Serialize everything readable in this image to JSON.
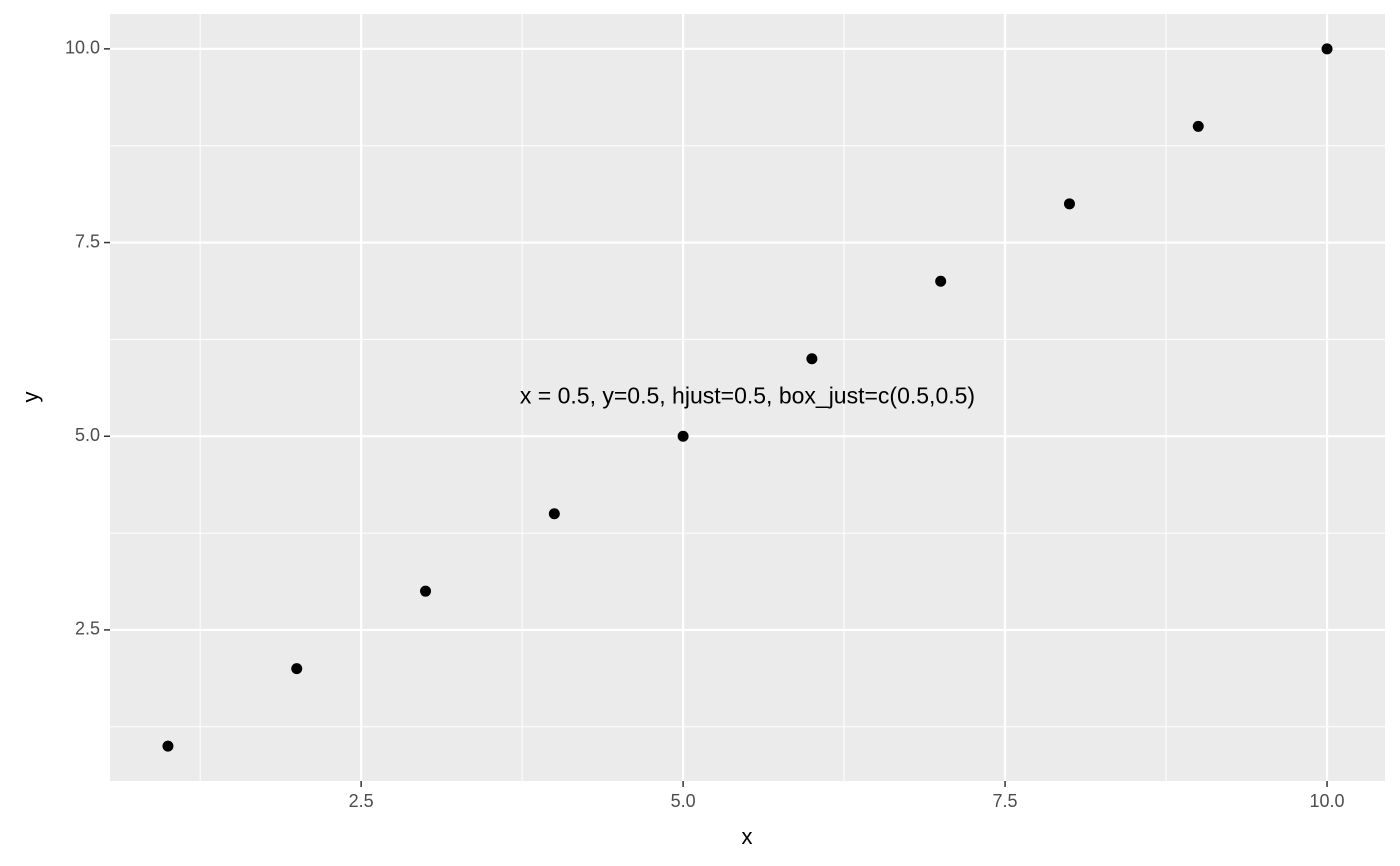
{
  "chart_data": {
    "type": "scatter",
    "x_label": "x",
    "y_label": "y",
    "annotation": "x = 0.5, y=0.5, hjust=0.5, box_just=c(0.5,0.5)",
    "x": [
      1,
      2,
      3,
      4,
      5,
      6,
      7,
      8,
      9,
      10
    ],
    "values": [
      1,
      2,
      3,
      4,
      5,
      6,
      7,
      8,
      9,
      10
    ],
    "color": "#000000",
    "xlim": [
      0.55,
      10.45
    ],
    "ylim": [
      0.55,
      10.45
    ],
    "xticks": [
      2.5,
      {
        "value": 5,
        "label": "5.0"
      },
      7.5,
      {
        "value": 10,
        "label": "10.0"
      }
    ],
    "yticks": [
      2.5,
      {
        "value": 5,
        "label": "5.0"
      },
      7.5,
      {
        "value": 10,
        "label": "10.0"
      }
    ],
    "xminor": [
      1.25,
      3.75,
      6.25,
      8.75
    ],
    "yminor": [
      1.25,
      3.75,
      6.25,
      8.75
    ],
    "grid": true
  }
}
